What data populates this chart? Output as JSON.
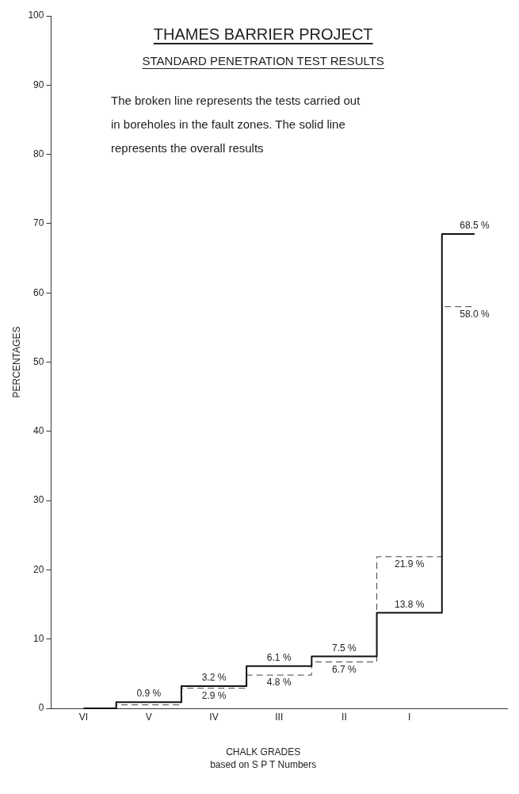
{
  "chart_data": {
    "type": "step",
    "title": "THAMES BARRIER PROJECT",
    "subtitle": "STANDARD PENETRATION TEST RESULTS",
    "xlabel": "CHALK GRADES",
    "ylabel": "PERCENTAGES",
    "annotations": [
      "The broken line represents the tests carried out in boreholes in the fault zones. The solid line represents the overall results",
      "based on S P T Numbers"
    ],
    "categories": [
      "VI",
      "V",
      "IV",
      "III",
      "II",
      "I",
      null
    ],
    "series": [
      {
        "color": "#111111",
        "line_style": "solid",
        "values": [
          0,
          0.9,
          3.2,
          6.1,
          7.5,
          13.8,
          68.5
        ],
        "value_labels": [
          null,
          "0.9 %",
          "3.2 %",
          "6.1 %",
          "7.5 %",
          "13.8 %",
          "68.5 %"
        ]
      },
      {
        "color": "#444444",
        "line_style": "dashed",
        "values": [
          0,
          0.5,
          2.9,
          4.8,
          6.7,
          21.9,
          58.0
        ],
        "value_labels": [
          null,
          null,
          "2.9 %",
          "4.8 %",
          "6.7 %",
          "21.9 %",
          "58.0 %"
        ]
      }
    ],
    "ylim": [
      0,
      100
    ],
    "yticks": [
      0,
      10,
      20,
      30,
      40,
      50,
      60,
      70,
      80,
      90,
      100
    ],
    "grid": false,
    "legend": false,
    "marker": "none"
  }
}
